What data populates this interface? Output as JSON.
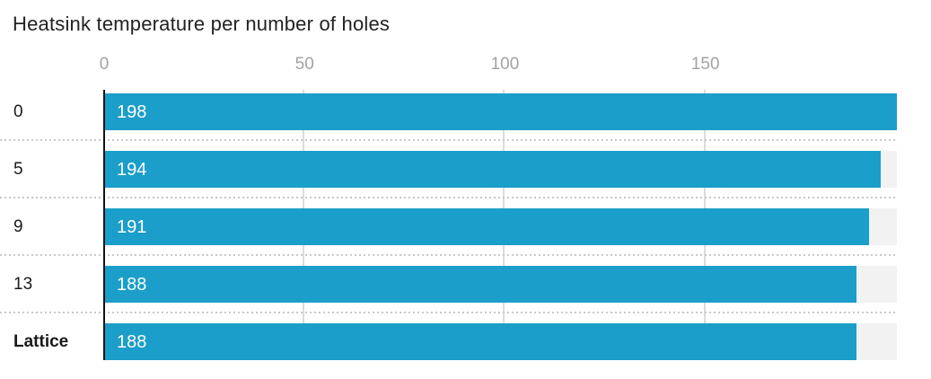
{
  "title": "Heatsink temperature per number of holes",
  "chart_data": {
    "type": "bar",
    "orientation": "horizontal",
    "title": "Heatsink temperature per number of holes",
    "categories": [
      "0",
      "5",
      "9",
      "13",
      "Lattice"
    ],
    "values": [
      198,
      194,
      191,
      188,
      188
    ],
    "bold_categories": [
      "Lattice"
    ],
    "value_labels": [
      "198",
      "194",
      "191",
      "188",
      "188"
    ],
    "x_ticks": [
      "0",
      "50",
      "100",
      "150"
    ],
    "x_tick_values": [
      0,
      50,
      100,
      150
    ],
    "xlim": [
      0,
      198
    ],
    "xlabel": "",
    "ylabel": "",
    "legend": "none",
    "grid": "vertical-ticks",
    "value_labels_position": "inside-start",
    "colors": {
      "bar": "#1b9eca",
      "track": "#f2f2f2",
      "gridline": "#dcdcdc",
      "separator_dots": "#c8c8c8",
      "axis_line": "#111111",
      "title_text": "#222222",
      "tick_text": "#a3a3a3",
      "category_text": "#1a1a1a",
      "value_text": "#ffffff"
    }
  }
}
